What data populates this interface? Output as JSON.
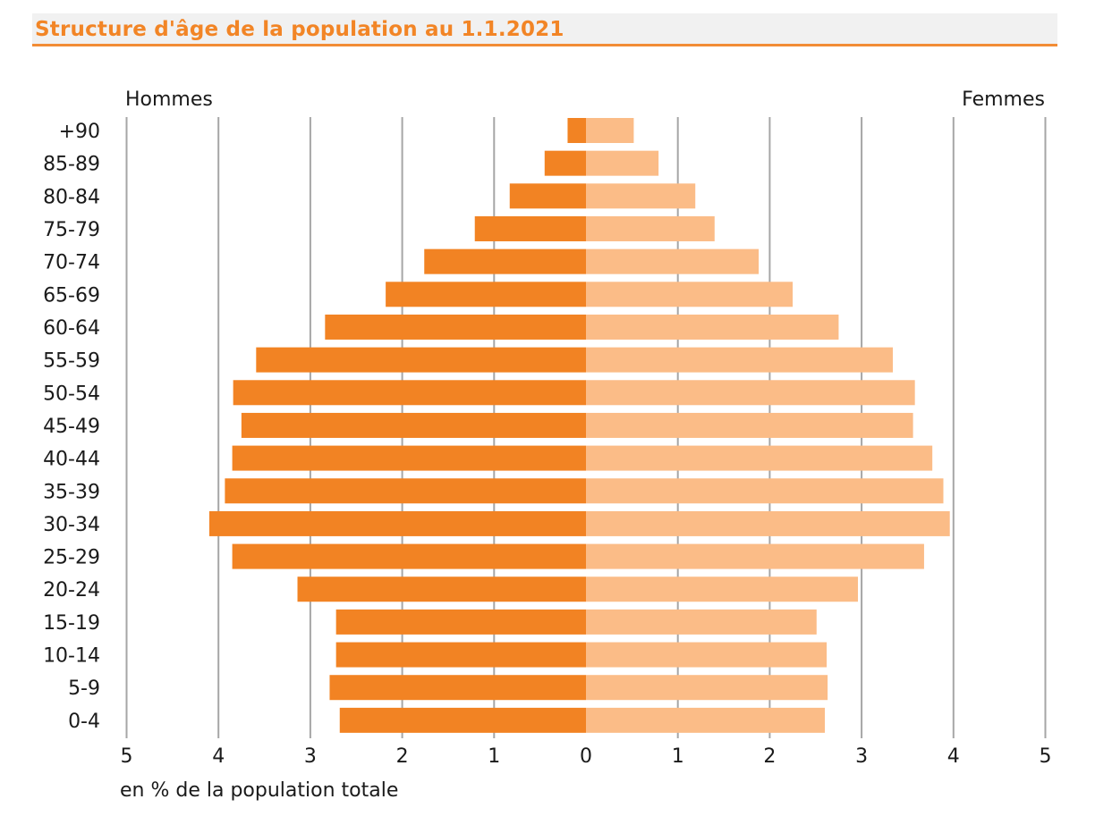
{
  "chart_data": {
    "type": "bar",
    "orientation": "horizontal",
    "title": "Structure d'âge de la population au 1.1.2021",
    "xlabel": "en % de la population totale",
    "left_label": "Hommes",
    "right_label": "Femmes",
    "xlim": [
      -5,
      5
    ],
    "x_ticks": [
      "5",
      "4",
      "3",
      "2",
      "1",
      "0",
      "1",
      "2",
      "3",
      "4",
      "5"
    ],
    "grid": "vertical",
    "categories": [
      "+90",
      "85-89",
      "80-84",
      "75-79",
      "70-74",
      "65-69",
      "60-64",
      "55-59",
      "50-54",
      "45-49",
      "40-44",
      "35-39",
      "30-34",
      "25-29",
      "20-24",
      "15-19",
      "10-14",
      "5-9",
      "0-4"
    ],
    "series": [
      {
        "name": "Hommes",
        "color": "#f28323",
        "values": [
          0.2,
          0.45,
          0.83,
          1.21,
          1.76,
          2.18,
          2.84,
          3.59,
          3.84,
          3.75,
          3.85,
          3.93,
          4.1,
          3.85,
          3.14,
          2.72,
          2.72,
          2.79,
          2.68
        ]
      },
      {
        "name": "Femmes",
        "color": "#fbbc87",
        "values": [
          0.52,
          0.79,
          1.19,
          1.4,
          1.88,
          2.25,
          2.75,
          3.34,
          3.58,
          3.56,
          3.77,
          3.89,
          3.96,
          3.68,
          2.96,
          2.51,
          2.62,
          2.63,
          2.6
        ]
      }
    ]
  }
}
